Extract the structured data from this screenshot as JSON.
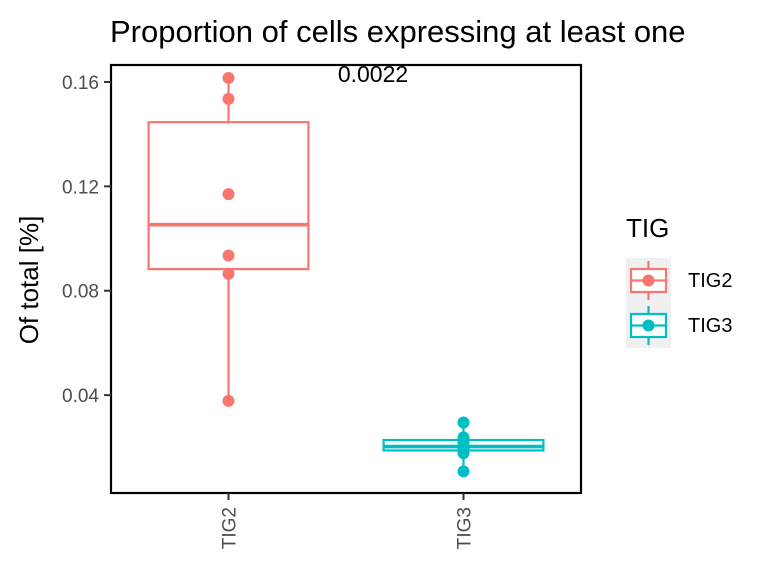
{
  "chart_data": {
    "type": "boxplot",
    "title": "Proportion of cells expressing at least one",
    "ylabel": "Of total [%]",
    "xlabel": "",
    "ylim": [
      0.0025,
      0.1665
    ],
    "yticks": [
      0.04,
      0.08,
      0.12,
      0.16
    ],
    "ytick_labels": [
      "0.04",
      "0.08",
      "0.12",
      "0.16"
    ],
    "grid": false,
    "legend_position": "right",
    "annotation": "0.0022",
    "legend": {
      "title": "TIG",
      "entries": [
        {
          "label": "TIG2",
          "color": "#F8766D"
        },
        {
          "label": "TIG3",
          "color": "#00BFC4"
        }
      ]
    },
    "categories": [
      "TIG2",
      "TIG3"
    ],
    "series": [
      {
        "category": "TIG2",
        "color": "#F8766D",
        "box": {
          "min": 0.0378,
          "q1": 0.0883,
          "median": 0.1053,
          "q3": 0.1446,
          "max": 0.1615
        },
        "points": [
          0.1615,
          0.1535,
          0.117,
          0.0935,
          0.0865,
          0.0378
        ]
      },
      {
        "category": "TIG3",
        "color": "#00BFC4",
        "box": {
          "min": 0.0108,
          "q1": 0.0188,
          "median": 0.0203,
          "q3": 0.0228,
          "max": 0.0295
        },
        "points": [
          0.0295,
          0.0238,
          0.0218,
          0.0198,
          0.0178,
          0.0108
        ]
      }
    ]
  }
}
